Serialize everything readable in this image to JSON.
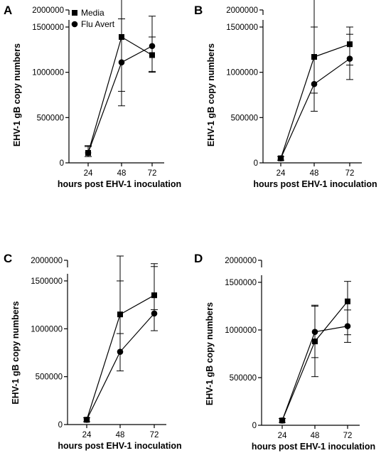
{
  "chart_data": [
    {
      "panel": "A",
      "type": "line",
      "categories": [
        "24",
        "48",
        "72"
      ],
      "xlabel": "hours post EHV-1 inoculation",
      "ylabel": "EHV-1 gB copy numbers",
      "yticks": [
        "0",
        "500000",
        "1000000",
        "1500000",
        "2000000"
      ],
      "axis_break": true,
      "legend": "top-left",
      "series": [
        {
          "name": "Media",
          "marker": "square",
          "values": [
            110000,
            1390000,
            1190000
          ],
          "err_high": [
            70000,
            600000,
            200000
          ],
          "err_low": [
            40000,
            600000,
            180000
          ]
        },
        {
          "name": "Flu Avert",
          "marker": "circle",
          "values": [
            110000,
            1110000,
            1290000
          ],
          "err_high": [
            80000,
            480000,
            330000
          ],
          "err_low": [
            40000,
            480000,
            290000
          ]
        }
      ]
    },
    {
      "panel": "B",
      "type": "line",
      "categories": [
        "24",
        "48",
        "72"
      ],
      "xlabel": "hours post EHV-1 inoculation",
      "ylabel": "EHV-1 gB copy numbers",
      "yticks": [
        "0",
        "500000",
        "1000000",
        "1500000",
        "2000000"
      ],
      "axis_break": true,
      "series": [
        {
          "name": "Media",
          "marker": "square",
          "values": [
            50000,
            1170000,
            1310000
          ],
          "err_high": [
            20000,
            330000,
            110000
          ],
          "err_low": [
            20000,
            400000,
            230000
          ]
        },
        {
          "name": "Flu Avert",
          "marker": "circle",
          "values": [
            50000,
            870000,
            1150000
          ],
          "err_high": [
            20000,
            1000000,
            350000
          ],
          "err_low": [
            20000,
            300000,
            230000
          ]
        }
      ]
    },
    {
      "panel": "C",
      "type": "line",
      "categories": [
        "24",
        "48",
        "72"
      ],
      "xlabel": "hours post EHV-1 inoculation",
      "ylabel": "EHV-1 gB copy numbers",
      "yticks": [
        "0",
        "500000",
        "1000000",
        "1500000",
        "2000000"
      ],
      "axis_break": true,
      "series": [
        {
          "name": "Media",
          "marker": "square",
          "values": [
            50000,
            1150000,
            1350000
          ],
          "err_high": [
            20000,
            350000,
            300000
          ],
          "err_low": [
            20000,
            200000,
            150000
          ]
        },
        {
          "name": "Flu Avert",
          "marker": "circle",
          "values": [
            50000,
            760000,
            1160000
          ],
          "err_high": [
            20000,
            1000000,
            520000
          ],
          "err_low": [
            20000,
            200000,
            180000
          ]
        }
      ]
    },
    {
      "panel": "D",
      "type": "line",
      "categories": [
        "24",
        "48",
        "72"
      ],
      "xlabel": "hours post EHV-1 inoculation",
      "ylabel": "EHV-1 gB copy numbers",
      "yticks": [
        "0",
        "500000",
        "1000000",
        "1500000",
        "2000000"
      ],
      "axis_break": true,
      "series": [
        {
          "name": "Media",
          "marker": "square",
          "values": [
            50000,
            880000,
            1300000
          ],
          "err_high": [
            20000,
            380000,
            210000
          ],
          "err_low": [
            20000,
            170000,
            350000
          ]
        },
        {
          "name": "Flu Avert",
          "marker": "circle",
          "values": [
            50000,
            980000,
            1040000
          ],
          "err_high": [
            20000,
            270000,
            170000
          ],
          "err_low": [
            20000,
            470000,
            170000
          ]
        }
      ]
    }
  ]
}
